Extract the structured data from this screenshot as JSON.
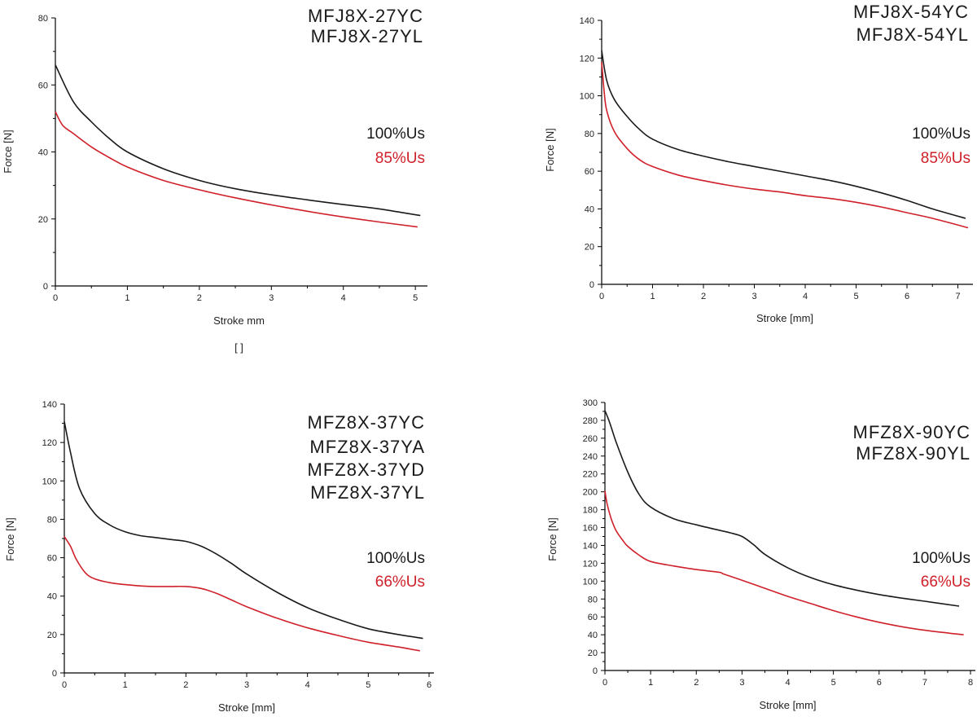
{
  "chart_data": [
    {
      "type": "line",
      "models": [
        "MFJ8X-27YC",
        "MFJ8X-27YL"
      ],
      "xlabel": "Stroke  mm",
      "xlabel_extra": "[     ]",
      "ylabel": "Force [N]",
      "xlim": [
        0,
        5.1
      ],
      "ylim": [
        0,
        80
      ],
      "xticks": [
        0,
        1,
        2,
        3,
        4,
        5
      ],
      "yticks": [
        0,
        20,
        40,
        60,
        80
      ],
      "grid": false,
      "legend_position": "right",
      "series": [
        {
          "name": "100%Us",
          "color": "#1a1a1a",
          "x": [
            0,
            0.25,
            0.5,
            0.75,
            1,
            1.5,
            2,
            2.5,
            3,
            3.5,
            4,
            4.5,
            5.07
          ],
          "y": [
            66,
            55,
            49,
            44,
            40,
            35,
            31.5,
            29,
            27.2,
            25.7,
            24.3,
            23,
            21
          ]
        },
        {
          "name": "85%Us",
          "color": "#d0202a",
          "x": [
            0,
            0.1,
            0.25,
            0.5,
            0.75,
            1,
            1.5,
            2,
            2.5,
            3,
            3.5,
            4,
            4.5,
            5.03
          ],
          "y": [
            52,
            48,
            45.5,
            41.5,
            38.3,
            35.5,
            31.5,
            28.7,
            26.3,
            24.2,
            22.3,
            20.6,
            19.1,
            17.6
          ]
        }
      ]
    },
    {
      "type": "line",
      "models": [
        "MFJ8X-54YC",
        "MFJ8X-54YL"
      ],
      "xlabel": "Stroke [mm]",
      "ylabel": "Force [N]",
      "xlim": [
        0,
        7.2
      ],
      "ylim": [
        0,
        140
      ],
      "xticks": [
        0,
        1,
        2,
        3,
        4,
        5,
        6,
        7
      ],
      "yticks": [
        0,
        20,
        40,
        60,
        80,
        100,
        120,
        140
      ],
      "grid": false,
      "legend_position": "right",
      "series": [
        {
          "name": "100%Us",
          "color": "#1a1a1a",
          "x": [
            0,
            0.1,
            0.25,
            0.5,
            0.75,
            1,
            1.5,
            2,
            2.5,
            3,
            3.5,
            4,
            4.5,
            5,
            5.5,
            6,
            6.5,
            7.15
          ],
          "y": [
            124,
            108,
            98,
            89,
            82,
            77,
            71.5,
            68,
            65,
            62.5,
            60,
            57.5,
            55,
            52,
            48.5,
            44.5,
            40,
            35
          ]
        },
        {
          "name": "85%Us",
          "color": "#d0202a",
          "x": [
            0,
            0.05,
            0.1,
            0.25,
            0.5,
            0.75,
            1,
            1.5,
            2,
            2.5,
            3,
            3.5,
            4,
            4.5,
            5,
            5.5,
            6,
            6.5,
            7.2
          ],
          "y": [
            118,
            102,
            92,
            81,
            72,
            66,
            62.5,
            58,
            55,
            52.5,
            50.5,
            49,
            47,
            45.5,
            43.5,
            41,
            38,
            35,
            30
          ]
        }
      ]
    },
    {
      "type": "line",
      "models": [
        "MFZ8X-37YC",
        "MFZ8X-37YA",
        "MFZ8X-37YD",
        "MFZ8X-37YL"
      ],
      "xlabel": "Stroke [mm]",
      "ylabel": "Force [N]",
      "xlim": [
        0,
        6
      ],
      "ylim": [
        0,
        140
      ],
      "xticks": [
        0,
        1,
        2,
        3,
        4,
        5,
        6
      ],
      "yticks": [
        0,
        20,
        40,
        60,
        80,
        100,
        120,
        140
      ],
      "grid": false,
      "legend_position": "right",
      "series": [
        {
          "name": "100%Us",
          "color": "#1a1a1a",
          "x": [
            0,
            0.1,
            0.25,
            0.5,
            0.75,
            1,
            1.25,
            1.5,
            1.75,
            2,
            2.25,
            2.5,
            2.75,
            3,
            3.5,
            4,
            4.5,
            5,
            5.5,
            5.9
          ],
          "y": [
            131,
            115,
            96,
            83,
            77,
            73.5,
            71.5,
            70.5,
            69.5,
            68.5,
            66,
            62,
            57,
            51.5,
            42,
            34,
            28,
            23,
            20,
            18
          ]
        },
        {
          "name": "66%Us",
          "color": "#d0202a",
          "x": [
            0,
            0.1,
            0.2,
            0.35,
            0.5,
            0.75,
            1,
            1.25,
            1.5,
            1.75,
            2,
            2.25,
            2.5,
            2.75,
            3,
            3.5,
            4,
            4.5,
            5,
            5.5,
            5.85
          ],
          "y": [
            71,
            66,
            59,
            52,
            49,
            47,
            46,
            45.3,
            45,
            45,
            45,
            44,
            41.5,
            38,
            34.5,
            28.5,
            23.5,
            19.5,
            16,
            13.5,
            11.5
          ]
        }
      ]
    },
    {
      "type": "line",
      "models": [
        "MFZ8X-90YC",
        "MFZ8X-90YL"
      ],
      "xlabel": "Stroke [mm]",
      "ylabel": "Force [N]",
      "xlim": [
        0,
        8
      ],
      "ylim": [
        0,
        300
      ],
      "xticks": [
        0,
        1,
        2,
        3,
        4,
        5,
        6,
        7,
        8
      ],
      "yticks": [
        0,
        20,
        40,
        60,
        80,
        100,
        120,
        140,
        160,
        180,
        200,
        220,
        240,
        260,
        280,
        300
      ],
      "grid": false,
      "legend_position": "right",
      "series": [
        {
          "name": "100%Us",
          "color": "#1a1a1a",
          "x": [
            0,
            0.1,
            0.25,
            0.5,
            0.75,
            1,
            1.5,
            2,
            2.5,
            2.75,
            3,
            3.25,
            3.5,
            4,
            4.5,
            5,
            5.5,
            6,
            6.5,
            7,
            7.75
          ],
          "y": [
            291,
            278,
            255,
            222,
            197,
            183,
            170,
            163,
            157,
            154,
            150,
            141,
            130,
            115,
            104,
            96,
            90,
            85,
            81,
            77.5,
            72
          ]
        },
        {
          "name": "66%Us",
          "color": "#d0202a",
          "x": [
            0,
            0.05,
            0.15,
            0.25,
            0.4,
            0.5,
            0.75,
            1,
            1.5,
            2,
            2.5,
            2.6,
            3,
            3.5,
            4,
            4.5,
            5,
            5.5,
            6,
            6.5,
            7,
            7.5,
            7.85
          ],
          "y": [
            201,
            186,
            168,
            156,
            145,
            139,
            129,
            122,
            117,
            113,
            110,
            108,
            101,
            92,
            83,
            75,
            67,
            60,
            54,
            49,
            45,
            42,
            40
          ]
        }
      ]
    }
  ]
}
